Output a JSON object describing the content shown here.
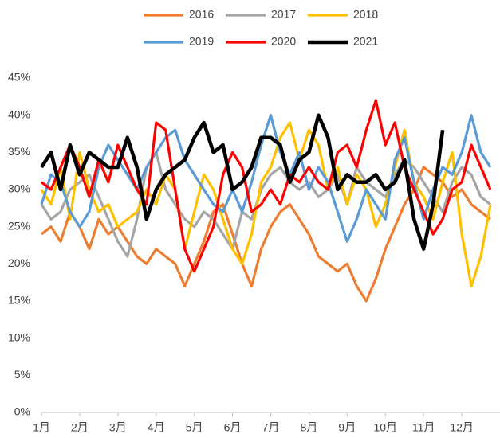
{
  "chart_data": {
    "type": "line",
    "xlim": [
      0,
      12
    ],
    "xticks": [
      {
        "value": 0,
        "label": "1月"
      },
      {
        "value": 1,
        "label": "2月"
      },
      {
        "value": 2,
        "label": "3月"
      },
      {
        "value": 3,
        "label": "4月"
      },
      {
        "value": 4,
        "label": "5月"
      },
      {
        "value": 5,
        "label": "6月"
      },
      {
        "value": 6,
        "label": "7月"
      },
      {
        "value": 7,
        "label": "8月"
      },
      {
        "value": 8,
        "label": "9月"
      },
      {
        "value": 9,
        "label": "10月"
      },
      {
        "value": 10,
        "label": "11月"
      },
      {
        "value": 11,
        "label": "12月"
      }
    ],
    "ylim": [
      0,
      45
    ],
    "yticks": [
      {
        "value": 0,
        "label": "0%"
      },
      {
        "value": 5,
        "label": "5%"
      },
      {
        "value": 10,
        "label": "10%"
      },
      {
        "value": 15,
        "label": "15%"
      },
      {
        "value": 20,
        "label": "20%"
      },
      {
        "value": 25,
        "label": "25%"
      },
      {
        "value": 30,
        "label": "30%"
      },
      {
        "value": 35,
        "label": "35%"
      },
      {
        "value": 40,
        "label": "40%"
      },
      {
        "value": 45,
        "label": "45%"
      }
    ],
    "x": [
      0,
      0.25,
      0.5,
      0.75,
      1,
      1.25,
      1.5,
      1.75,
      2,
      2.25,
      2.5,
      2.75,
      3,
      3.25,
      3.5,
      3.75,
      4,
      4.25,
      4.5,
      4.75,
      5,
      5.25,
      5.5,
      5.75,
      6,
      6.25,
      6.5,
      6.75,
      7,
      7.25,
      7.5,
      7.75,
      8,
      8.25,
      8.5,
      8.75,
      9,
      9.25,
      9.5,
      9.75,
      10,
      10.25,
      10.5,
      10.75,
      11,
      11.25,
      11.5,
      11.75
    ],
    "series": [
      {
        "name": "2016",
        "color": "#ED7D31",
        "values": [
          24,
          25,
          23,
          27,
          25,
          22,
          26,
          24,
          25,
          23,
          21,
          20,
          22,
          21,
          20,
          17,
          20,
          23,
          27,
          28,
          24,
          20,
          17,
          22,
          25,
          27,
          28,
          26,
          24,
          21,
          20,
          19,
          20,
          17,
          15,
          18,
          22,
          25,
          28,
          30,
          33,
          32,
          31,
          29,
          30,
          28,
          27,
          26
        ]
      },
      {
        "name": "2017",
        "color": "#A5A5A5",
        "values": [
          28,
          26,
          27,
          30,
          31,
          32,
          29,
          26,
          23,
          21,
          26,
          33,
          35,
          30,
          28,
          26,
          25,
          27,
          26,
          24,
          22,
          27,
          26,
          30,
          32,
          33,
          31,
          30,
          31,
          29,
          30,
          32,
          28,
          33,
          31,
          30,
          29,
          32,
          34,
          33,
          31,
          29,
          27,
          31,
          33,
          32,
          29,
          28
        ]
      },
      {
        "name": "2018",
        "color": "#FFC000",
        "values": [
          30,
          28,
          33,
          26,
          35,
          30,
          27,
          28,
          25,
          26,
          27,
          30,
          28,
          32,
          30,
          22,
          27,
          32,
          30,
          26,
          22,
          20,
          24,
          31,
          33,
          37,
          39,
          34,
          38,
          36,
          30,
          33,
          28,
          32,
          30,
          25,
          28,
          33,
          38,
          31,
          29,
          26,
          31,
          35,
          24,
          17,
          21,
          28
        ]
      },
      {
        "name": "2019",
        "color": "#5B9BD5",
        "values": [
          28,
          32,
          31,
          27,
          25,
          27,
          33,
          36,
          34,
          32,
          30,
          33,
          35,
          37,
          38,
          34,
          32,
          30,
          28,
          27,
          30,
          27,
          31,
          36,
          40,
          35,
          32,
          35,
          30,
          33,
          31,
          27,
          23,
          26,
          30,
          28,
          26,
          34,
          37,
          31,
          26,
          30,
          33,
          32,
          35,
          40,
          35,
          33
        ]
      },
      {
        "name": "2020",
        "color": "#FF0000",
        "values": [
          31,
          30,
          33,
          36,
          33,
          29,
          34,
          31,
          36,
          33,
          30,
          28,
          39,
          38,
          30,
          22,
          19,
          22,
          25,
          32,
          35,
          33,
          27,
          28,
          30,
          28,
          32,
          31,
          33,
          31,
          30,
          35,
          36,
          33,
          38,
          42,
          36,
          39,
          33,
          30,
          27,
          24,
          26,
          30,
          31,
          36,
          33,
          30
        ]
      },
      {
        "name": "2021",
        "color": "#000000",
        "values": [
          33,
          35,
          30,
          36,
          32,
          35,
          34,
          33,
          33,
          37,
          33,
          26,
          30,
          32,
          33,
          34,
          37,
          39,
          35,
          36,
          30,
          31,
          33,
          37,
          37,
          36,
          31,
          34,
          35,
          40,
          37,
          30,
          32,
          31,
          31,
          32,
          30,
          31,
          34,
          26,
          22,
          28,
          38,
          null,
          null,
          null,
          null,
          null
        ]
      }
    ]
  }
}
